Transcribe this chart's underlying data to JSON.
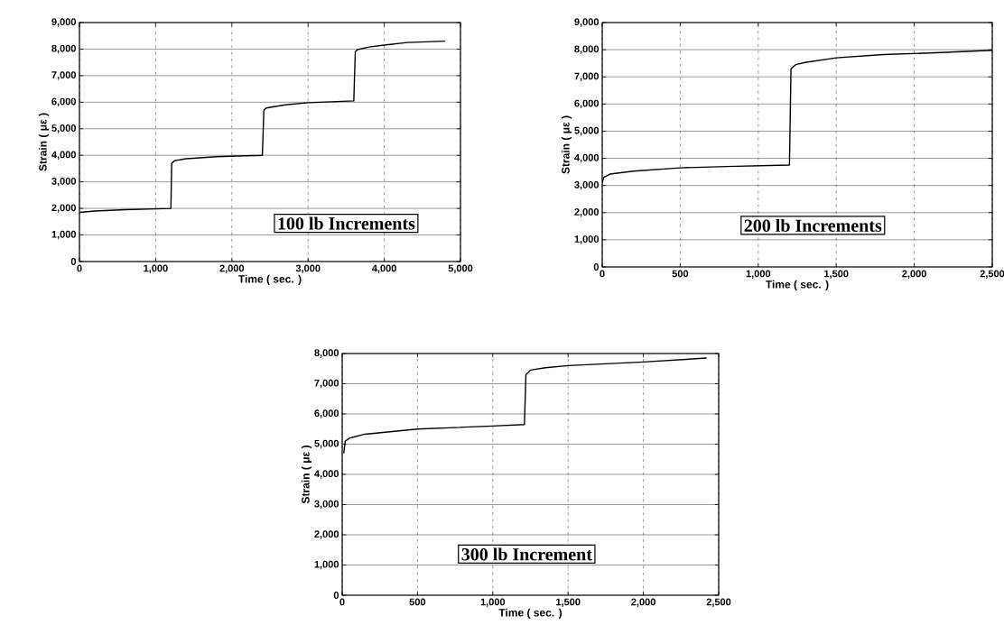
{
  "chart_data": [
    {
      "type": "line",
      "xlabel": "Time ( sec. )",
      "ylabel": "Strain ( με )",
      "annotations": [
        "100 lb Increments"
      ],
      "grid": true,
      "color": "#000000",
      "x": [
        0,
        200,
        600,
        1200,
        1210,
        1250,
        1400,
        1800,
        2400,
        2420,
        2450,
        2700,
        3000,
        3600,
        3620,
        3650,
        3800,
        4000,
        4300,
        4800
      ],
      "values": [
        1850,
        1900,
        1950,
        2000,
        3700,
        3800,
        3870,
        3950,
        4000,
        5700,
        5780,
        5900,
        5980,
        6050,
        7900,
        7980,
        8080,
        8150,
        8250,
        8300
      ],
      "xlim": [
        0,
        5000
      ],
      "ylim": [
        0,
        9000
      ],
      "xticks": [
        0,
        {
          "value": 1000,
          "label": "1,000"
        },
        {
          "value": 2000,
          "label": "2,000"
        },
        {
          "value": 3000,
          "label": "3,000"
        },
        {
          "value": 4000,
          "label": "4,000"
        },
        {
          "value": 5000,
          "label": "5,000"
        }
      ],
      "yticks": [
        0,
        {
          "value": 1000,
          "label": "1,000"
        },
        {
          "value": 2000,
          "label": "2,000"
        },
        {
          "value": 3000,
          "label": "3,000"
        },
        {
          "value": 4000,
          "label": "4,000"
        },
        {
          "value": 5000,
          "label": "5,000"
        },
        {
          "value": 6000,
          "label": "6,000"
        },
        {
          "value": 7000,
          "label": "7,000"
        },
        {
          "value": 8000,
          "label": "8,000"
        },
        {
          "value": 9000,
          "label": "9,000"
        }
      ]
    },
    {
      "type": "line",
      "xlabel": "Time ( sec. )",
      "ylabel": "Strain ( με )",
      "annotations": [
        "200 lb Increments"
      ],
      "grid": true,
      "color": "#000000",
      "x": [
        0,
        10,
        50,
        200,
        500,
        800,
        1200,
        1210,
        1240,
        1300,
        1500,
        1800,
        2100,
        2500
      ],
      "values": [
        3100,
        3300,
        3420,
        3530,
        3650,
        3700,
        3750,
        7300,
        7450,
        7530,
        7700,
        7820,
        7880,
        7980
      ],
      "xlim": [
        0,
        2500
      ],
      "ylim": [
        0,
        9000
      ],
      "xticks": [
        0,
        500,
        {
          "value": 1000,
          "label": "1,000"
        },
        {
          "value": 1500,
          "label": "1,500"
        },
        {
          "value": 2000,
          "label": "2,000"
        },
        {
          "value": 2500,
          "label": "2,500"
        }
      ],
      "yticks": [
        0,
        {
          "value": 1000,
          "label": "1,000"
        },
        {
          "value": 2000,
          "label": "2,000"
        },
        {
          "value": 3000,
          "label": "3,000"
        },
        {
          "value": 4000,
          "label": "4,000"
        },
        {
          "value": 5000,
          "label": "5,000"
        },
        {
          "value": 6000,
          "label": "6,000"
        },
        {
          "value": 7000,
          "label": "7,000"
        },
        {
          "value": 8000,
          "label": "8,000"
        },
        {
          "value": 9000,
          "label": "9,000"
        }
      ]
    },
    {
      "type": "line",
      "xlabel": "Time ( sec. )",
      "ylabel": "Strain ( με )",
      "annotations": [
        "300 lb Increment"
      ],
      "grid": true,
      "color": "#000000",
      "x": [
        10,
        20,
        50,
        150,
        500,
        1000,
        1210,
        1220,
        1250,
        1350,
        1500,
        2000,
        2420
      ],
      "values": [
        4700,
        5100,
        5200,
        5330,
        5500,
        5600,
        5650,
        7300,
        7450,
        7530,
        7600,
        7720,
        7850
      ],
      "xlim": [
        0,
        2500
      ],
      "ylim": [
        0,
        8000
      ],
      "xticks": [
        0,
        500,
        {
          "value": 1000,
          "label": "1,000"
        },
        {
          "value": 1500,
          "label": "1,500"
        },
        {
          "value": 2000,
          "label": "2,000"
        },
        {
          "value": 2500,
          "label": "2,500"
        }
      ],
      "yticks": [
        0,
        {
          "value": 1000,
          "label": "1,000"
        },
        {
          "value": 2000,
          "label": "2,000"
        },
        {
          "value": 3000,
          "label": "3,000"
        },
        {
          "value": 4000,
          "label": "4,000"
        },
        {
          "value": 5000,
          "label": "5,000"
        },
        {
          "value": 6000,
          "label": "6,000"
        },
        {
          "value": 7000,
          "label": "7,000"
        },
        {
          "value": 8000,
          "label": "8,000"
        }
      ]
    }
  ]
}
